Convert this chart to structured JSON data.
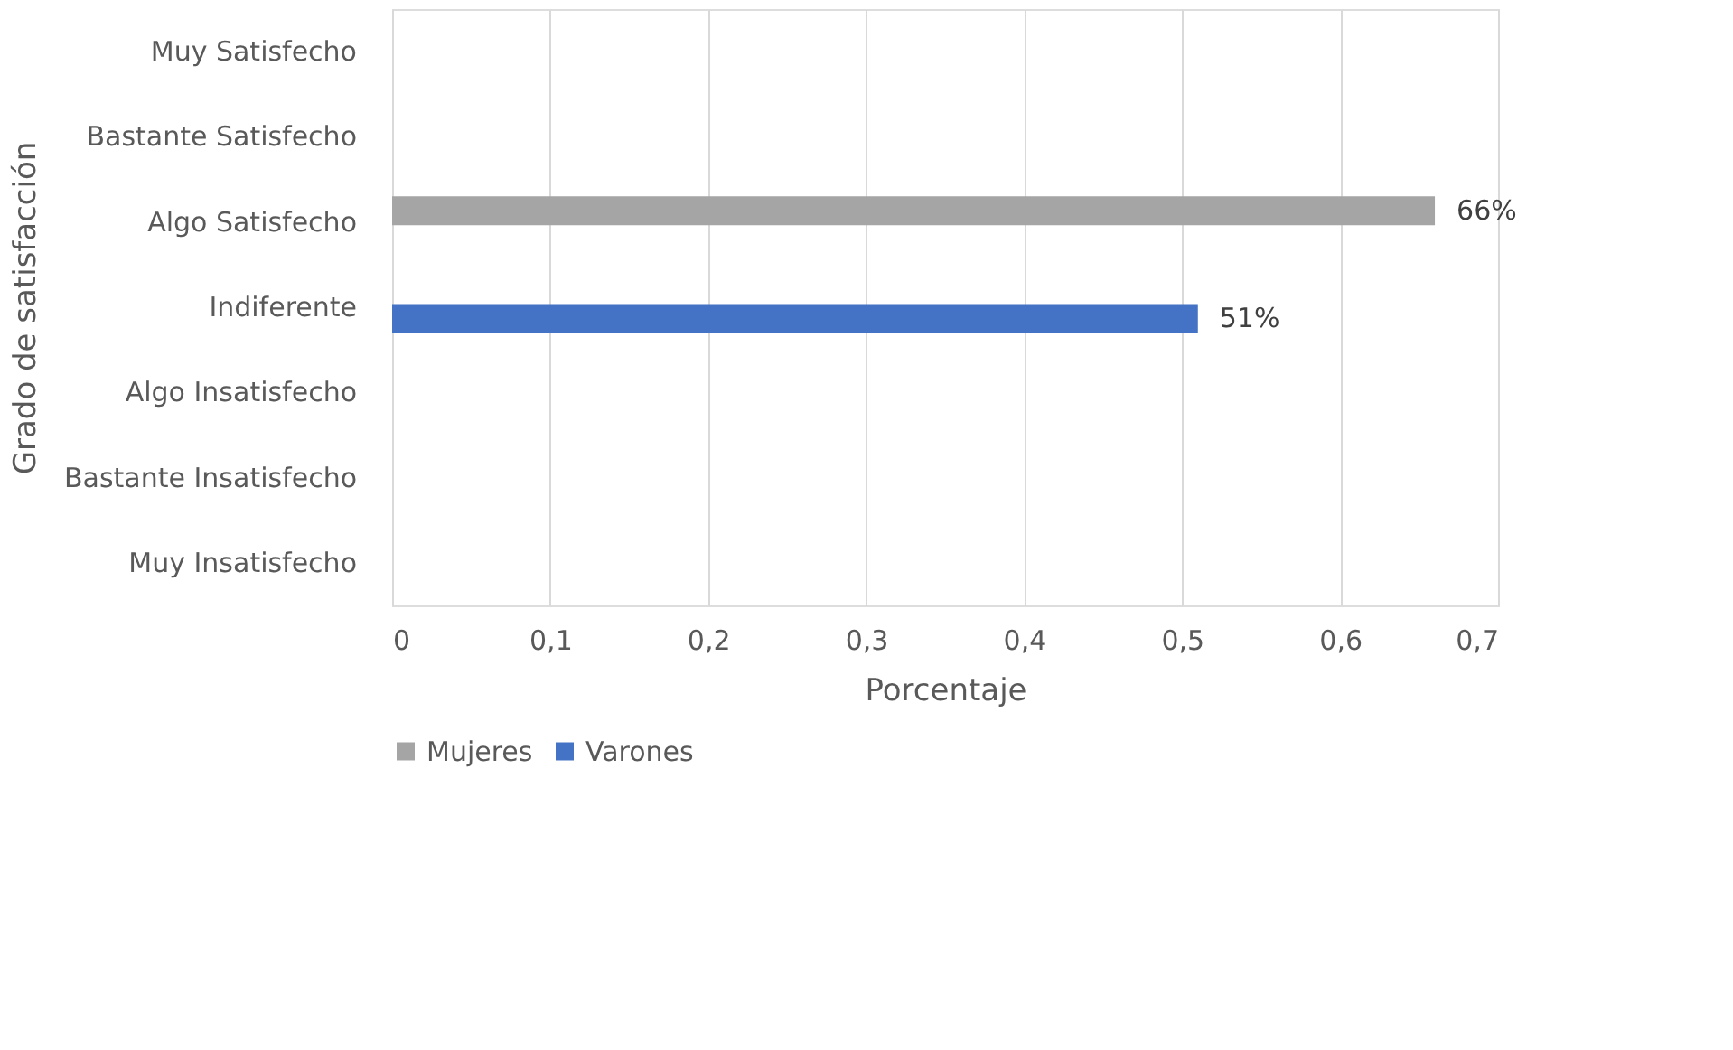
{
  "chart_data": {
    "type": "bar",
    "orientation": "horizontal",
    "xlabel": "Porcentaje",
    "ylabel": "Grado de satisfacción",
    "categories": [
      "Muy Satisfecho",
      "Bastante Satisfecho",
      "Algo Satisfecho",
      "Indiferente",
      "Algo Insatisfecho",
      "Bastante Insatisfecho",
      "Muy Insatisfecho"
    ],
    "series": [
      {
        "name": "Mujeres",
        "color": "#a5a5a5",
        "values": [
          null,
          null,
          0.66,
          null,
          null,
          null,
          null
        ],
        "value_labels": [
          null,
          null,
          "66%",
          null,
          null,
          null,
          null
        ]
      },
      {
        "name": "Varones",
        "color": "#4472c4",
        "values": [
          null,
          null,
          null,
          0.51,
          null,
          null,
          null
        ],
        "value_labels": [
          null,
          null,
          null,
          "51%",
          null,
          null,
          null
        ]
      }
    ],
    "xlim": [
      0,
      0.7
    ],
    "xticks": [
      0,
      {
        "value": 0.1,
        "label": "0,1"
      },
      {
        "value": 0.2,
        "label": "0,2"
      },
      {
        "value": 0.3,
        "label": "0,3"
      },
      {
        "value": 0.4,
        "label": "0,4"
      },
      {
        "value": 0.5,
        "label": "0,5"
      },
      {
        "value": 0.6,
        "label": "0,6"
      },
      {
        "value": 0.7,
        "label": "0,7"
      }
    ],
    "grid": "x",
    "legend": "bottom"
  }
}
